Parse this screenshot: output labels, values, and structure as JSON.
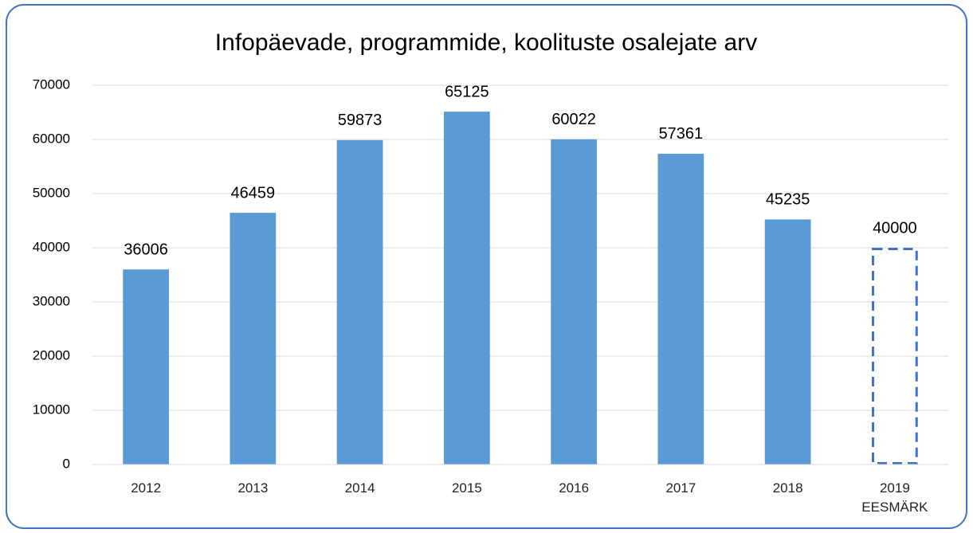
{
  "chart_data": {
    "type": "bar",
    "title": "Infopäevade, programmide, koolituste osalejate arv",
    "categories": [
      "2012",
      "2013",
      "2014",
      "2015",
      "2016",
      "2017",
      "2018",
      "2019 EESMÄRK"
    ],
    "values": [
      36006,
      46459,
      59873,
      65125,
      60022,
      57361,
      45235,
      40000
    ],
    "bar_styles": [
      "solid",
      "solid",
      "solid",
      "solid",
      "solid",
      "solid",
      "solid",
      "dashed"
    ],
    "color": "#5b9bd5",
    "outline_color": "#4472c4",
    "ylim": [
      0,
      70000
    ],
    "yticks": [
      0,
      10000,
      20000,
      30000,
      40000,
      50000,
      60000,
      70000
    ],
    "grid": true
  }
}
